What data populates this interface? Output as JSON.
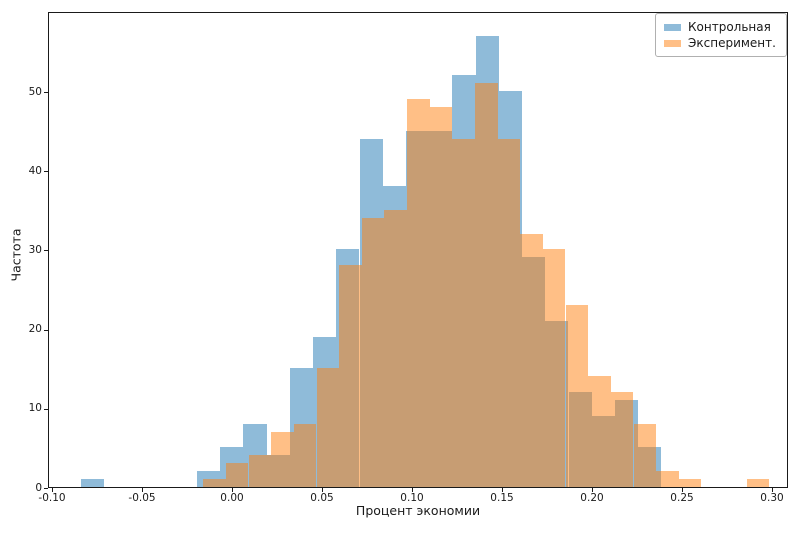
{
  "chart_data": {
    "type": "histogram",
    "title": "",
    "xlabel": "Процент экономии",
    "ylabel": "Частота",
    "background_color": "#ffffff",
    "spine_color": "#1a1a1a",
    "grid": false,
    "xlim": [
      -0.1022,
      0.3089
    ],
    "ylim": [
      0,
      60.1
    ],
    "x_ticks": [
      {
        "value": -0.1,
        "label": "-0.10"
      },
      {
        "value": -0.05,
        "label": "-0.05"
      },
      {
        "value": 0.0,
        "label": "0.00"
      },
      {
        "value": 0.05,
        "label": "0.05"
      },
      {
        "value": 0.1,
        "label": "0.10"
      },
      {
        "value": 0.15,
        "label": "0.15"
      },
      {
        "value": 0.2,
        "label": "0.20"
      },
      {
        "value": 0.25,
        "label": "0.25"
      },
      {
        "value": 0.3,
        "label": "0.30"
      }
    ],
    "y_ticks": [
      {
        "value": 0,
        "label": "0"
      },
      {
        "value": 10,
        "label": "10"
      },
      {
        "value": 20,
        "label": "20"
      },
      {
        "value": 30,
        "label": "30"
      },
      {
        "value": 40,
        "label": "40"
      },
      {
        "value": 50,
        "label": "50"
      }
    ],
    "legend": {
      "position": "upper right",
      "border_color": "#b0b0b0",
      "entries": [
        {
          "label": "Контрольная",
          "color": "#1f77b4"
        },
        {
          "label": "Эксперимент.",
          "color": "#ff7f0e"
        }
      ]
    },
    "series": [
      {
        "name": "Контрольная",
        "color": "#1f77b4",
        "alpha": 0.5,
        "bin_start": -0.0845,
        "bin_width": 0.0129,
        "counts": [
          1,
          0,
          0,
          0,
          0,
          2,
          5,
          8,
          4,
          15,
          19,
          30,
          44,
          38,
          45,
          45,
          52,
          57,
          50,
          29,
          21,
          12,
          9,
          11,
          5
        ]
      },
      {
        "name": "Эксперимент.",
        "color": "#ff7f0e",
        "alpha": 0.5,
        "bin_start": -0.0165,
        "bin_width": 0.01258,
        "counts": [
          1,
          3,
          4,
          7,
          8,
          15,
          28,
          34,
          35,
          49,
          48,
          44,
          51,
          44,
          32,
          30,
          23,
          14,
          12,
          8,
          2,
          1,
          0,
          0,
          1
        ]
      }
    ]
  }
}
